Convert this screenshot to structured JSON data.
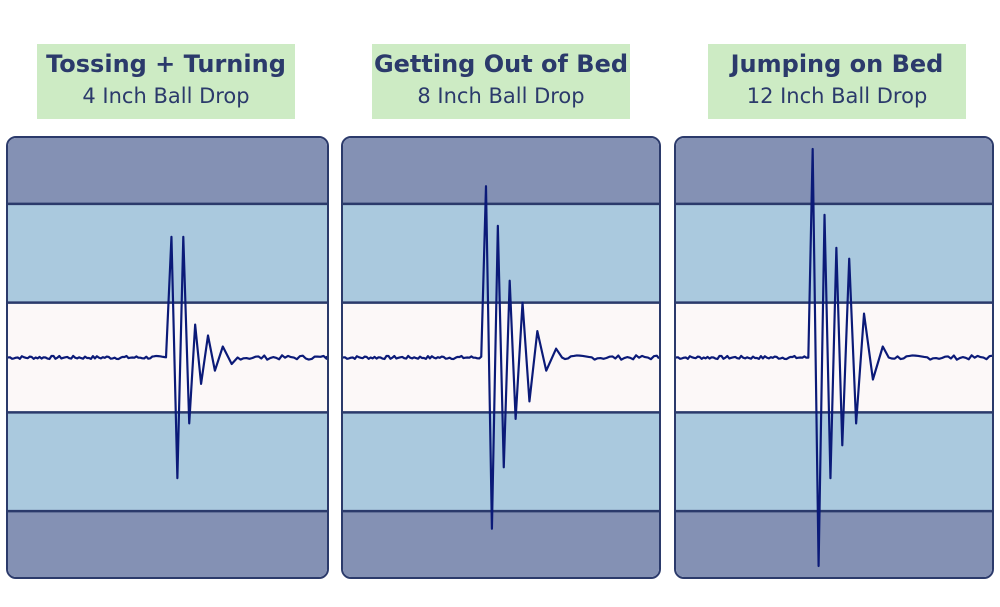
{
  "colors": {
    "outer_band": "#8491b4",
    "middle_band": "#aac9de",
    "center_band": "#fcf8f8",
    "band_border": "#2b3a6b",
    "trace": "#0b1a78",
    "label_bg": "#cdebc4",
    "label_text": "#2b3a6b"
  },
  "panels": [
    {
      "title": "Tossing + Turning",
      "subtitle": "4 Inch Ball Drop"
    },
    {
      "title": "Getting Out of Bed",
      "subtitle": "8 Inch Ball Drop"
    },
    {
      "title": "Jumping on Bed",
      "subtitle": "12 Inch Ball Drop"
    }
  ],
  "chart_data": [
    {
      "type": "line",
      "title": "Tossing + Turning",
      "subtitle": "4 Inch Ball Drop",
      "ylim": [
        -1,
        1
      ],
      "bands": [
        -1,
        -0.7,
        -0.25,
        0.25,
        0.7,
        1
      ],
      "impulse": {
        "x": 0.5,
        "amplitudes": [
          0.55,
          -0.55,
          0.55,
          -0.3,
          0.15,
          -0.12,
          0.1,
          -0.06,
          0.05,
          -0.03
        ]
      }
    },
    {
      "type": "line",
      "title": "Getting Out of Bed",
      "subtitle": "8 Inch Ball Drop",
      "ylim": [
        -1,
        1
      ],
      "bands": [
        -1,
        -0.7,
        -0.25,
        0.25,
        0.7,
        1
      ],
      "impulse": {
        "x": 0.44,
        "amplitudes": [
          0.78,
          -0.78,
          0.6,
          -0.5,
          0.35,
          -0.28,
          0.25,
          -0.2,
          0.12,
          -0.06,
          0.04
        ]
      }
    },
    {
      "type": "line",
      "title": "Jumping on Bed",
      "subtitle": "12 Inch Ball Drop",
      "ylim": [
        -1,
        1
      ],
      "bands": [
        -1,
        -0.7,
        -0.25,
        0.25,
        0.7,
        1
      ],
      "impulse": {
        "x": 0.42,
        "amplitudes": [
          0.95,
          -0.95,
          0.65,
          -0.55,
          0.5,
          -0.4,
          0.45,
          -0.3,
          0.2,
          -0.1,
          0.05
        ]
      }
    }
  ]
}
